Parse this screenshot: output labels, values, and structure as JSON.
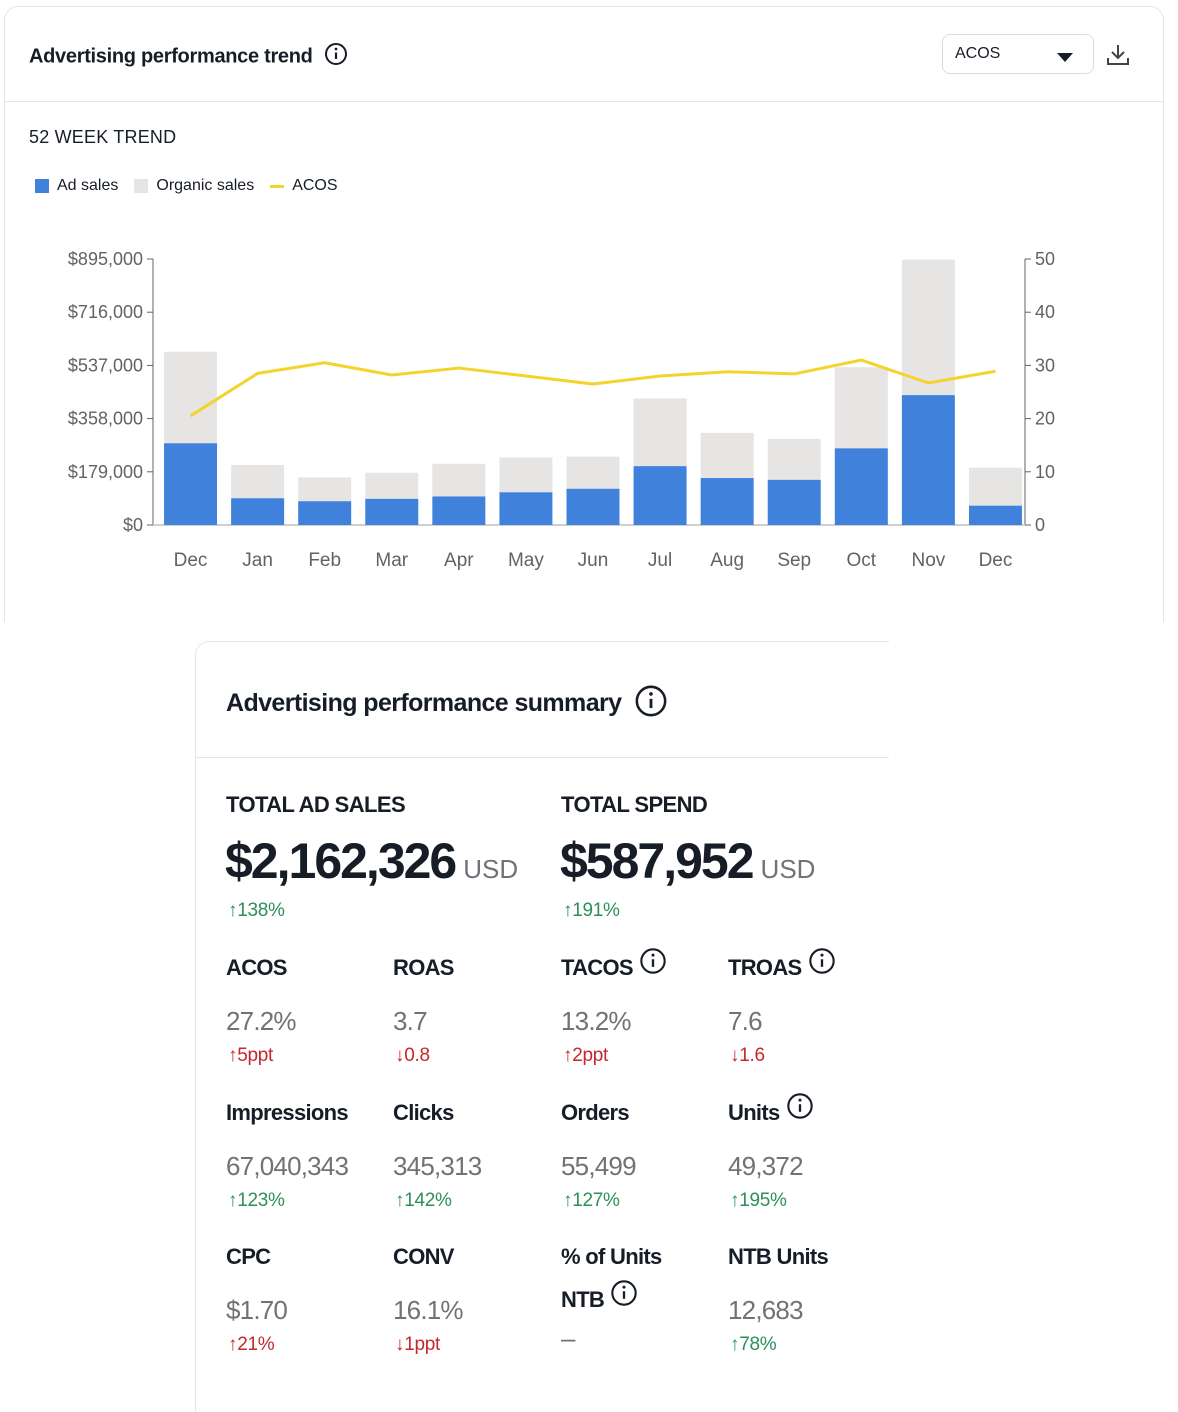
{
  "trend_card": {
    "title": "Advertising performance trend",
    "select_value": "ACOS",
    "subtitle": "52 WEEK TREND",
    "legend": [
      "Ad sales",
      "Organic sales",
      "ACOS"
    ]
  },
  "colors": {
    "ad_sales": "#4081dc",
    "organic_sales": "#e6e5e3",
    "acos": "#f4d32e",
    "up": "#2e8f5a",
    "down": "#c6282a"
  },
  "chart_data": {
    "type": "bar",
    "categories": [
      "Dec",
      "Jan",
      "Feb",
      "Mar",
      "Apr",
      "May",
      "Jun",
      "Jul",
      "Aug",
      "Sep",
      "Oct",
      "Nov",
      "Dec"
    ],
    "series": [
      {
        "name": "Ad sales",
        "stack": "sales",
        "values": [
          275000,
          90000,
          80000,
          88000,
          96000,
          110000,
          122000,
          198000,
          158000,
          152000,
          258000,
          437000,
          65000
        ]
      },
      {
        "name": "Organic sales",
        "stack": "sales",
        "values": [
          308000,
          112000,
          80000,
          88000,
          110000,
          117000,
          108000,
          228000,
          152000,
          138000,
          273000,
          456000,
          128000
        ]
      },
      {
        "name": "ACOS",
        "type": "line",
        "axis": "right",
        "values": [
          20.5,
          28.5,
          30.5,
          28.2,
          29.5,
          28.0,
          26.5,
          28.0,
          28.8,
          28.4,
          31.0,
          26.7,
          28.9
        ]
      }
    ],
    "y_left": {
      "ticks": [
        "$0",
        "$179,000",
        "$358,000",
        "$537,000",
        "$716,000",
        "$895,000"
      ],
      "ylim": [
        0,
        895000
      ]
    },
    "y_right": {
      "ticks": [
        "0",
        "10",
        "20",
        "30",
        "40",
        "50"
      ],
      "ylim": [
        0,
        50
      ]
    }
  },
  "summary": {
    "title": "Advertising performance summary",
    "total_ad_sales": {
      "label": "TOTAL AD SALES",
      "value": "$2,162,326",
      "unit": "USD",
      "change": "138%"
    },
    "total_spend": {
      "label": "TOTAL SPEND",
      "value": "$587,952",
      "unit": "USD",
      "change": "191%"
    },
    "metrics": [
      {
        "label": "ACOS",
        "value": "27.2%",
        "change": "5ppt",
        "dir": "↑"
      },
      {
        "label": "ROAS",
        "value": "3.7",
        "change": "0.8",
        "dir": "↓"
      },
      {
        "label": "TACOS",
        "value": "13.2%",
        "change": "2ppt",
        "dir": "↑"
      },
      {
        "label": "TROAS",
        "value": "7.6",
        "change": "1.6",
        "dir": "↓"
      },
      {
        "label": "Impressions",
        "value": "67,040,343",
        "change": "123%",
        "dir": "↑"
      },
      {
        "label": "Clicks",
        "value": "345,313",
        "change": "142%",
        "dir": "↑"
      },
      {
        "label": "Orders",
        "value": "55,499",
        "change": "127%",
        "dir": "↑"
      },
      {
        "label": "Units",
        "value": "49,372",
        "change": "195%",
        "dir": "↑"
      },
      {
        "label": "CPC",
        "value": "$1.70",
        "change": "21%",
        "dir": "↑"
      },
      {
        "label": "CONV",
        "value": "16.1%",
        "change": "1ppt",
        "dir": "↓"
      },
      {
        "label": "% of Units NTB",
        "value": "–",
        "change": "",
        "dir": ""
      },
      {
        "label": "NTB Units",
        "value": "12,683",
        "change": "78%",
        "dir": "↑"
      }
    ]
  }
}
